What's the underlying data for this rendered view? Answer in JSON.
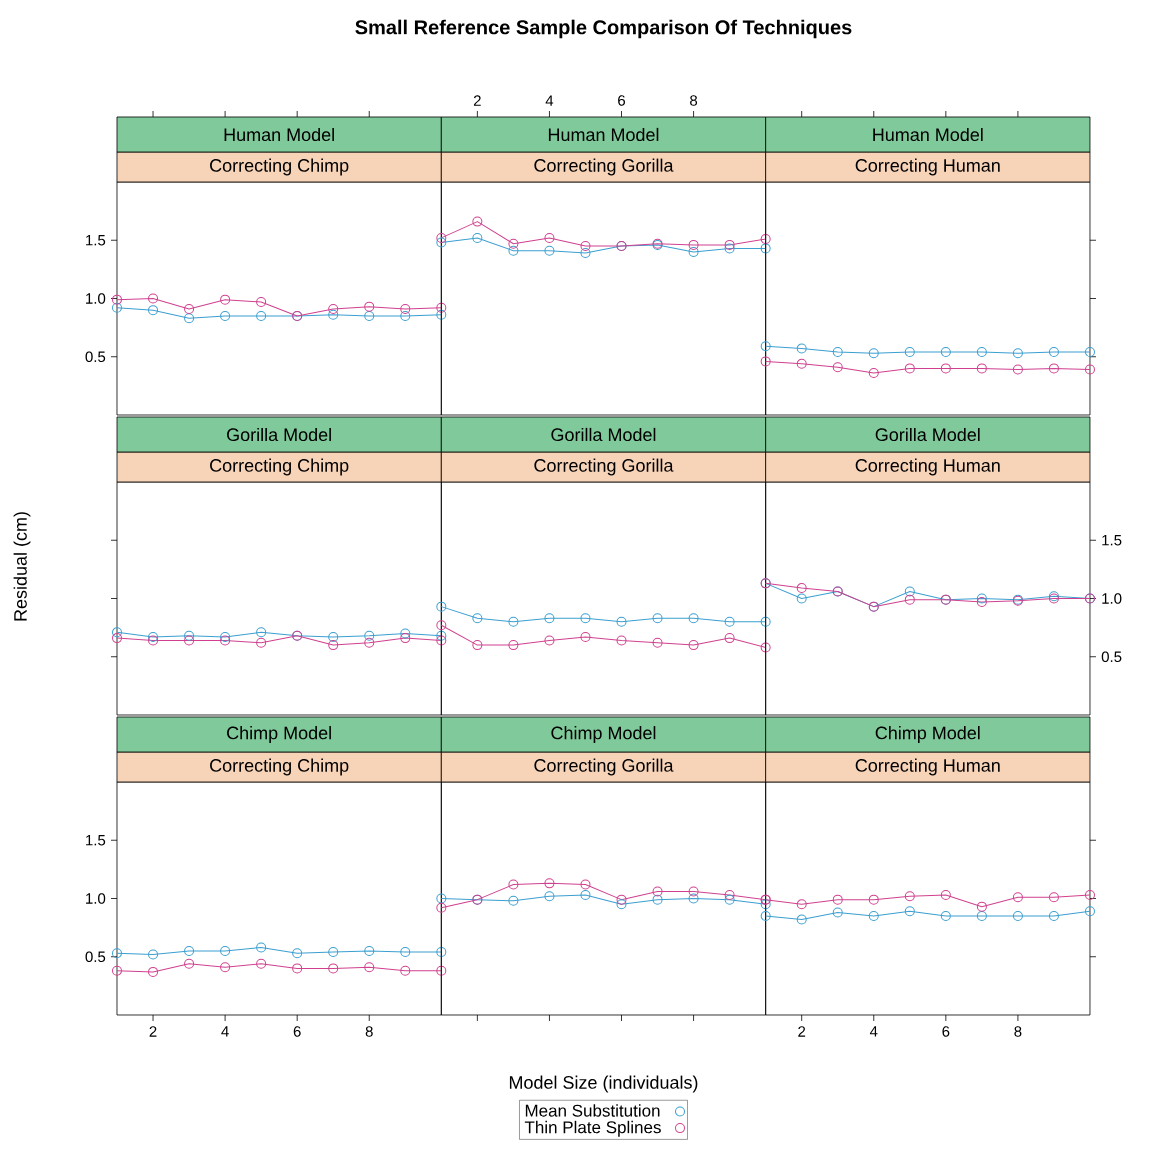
{
  "chart_data": [
    {
      "type": "other",
      "title": "Small Reference Sample Comparison Of Techniques",
      "xlabel": "Model Size (individuals)",
      "ylabel": "Residual (cm)"
    },
    {
      "type": "line",
      "title": "Human Model",
      "subtitle": "Correcting Chimp",
      "x": [
        1,
        2,
        3,
        4,
        5,
        6,
        7,
        8,
        9,
        10
      ],
      "xlim": [
        1,
        10
      ],
      "ylim": [
        0,
        2
      ],
      "xticks": [
        2,
        4,
        6,
        8
      ],
      "yticks": [
        {
          "value": 0.5,
          "label": "0.5"
        },
        {
          "value": 1.0,
          "label": "1.0"
        },
        {
          "value": 1.5,
          "label": "1.5"
        }
      ],
      "tick_labels": "y",
      "marker": "circle",
      "line_style": "solid",
      "series": [
        {
          "color": "#3b9fd0",
          "values": [
            0.92,
            0.9,
            0.83,
            0.85,
            0.85,
            0.85,
            0.86,
            0.85,
            0.85,
            0.86
          ]
        },
        {
          "color": "#d0408f",
          "values": [
            0.99,
            1.0,
            0.91,
            0.99,
            0.97,
            0.85,
            0.91,
            0.93,
            0.91,
            0.92
          ]
        }
      ]
    },
    {
      "type": "line",
      "title": "Human Model",
      "subtitle": "Correcting Gorilla",
      "x": [
        1,
        2,
        3,
        4,
        5,
        6,
        7,
        8,
        9,
        10
      ],
      "xlim": [
        1,
        10
      ],
      "ylim": [
        0,
        2
      ],
      "xticks": [
        2,
        4,
        6,
        8
      ],
      "tick_labels": "x",
      "marker": "circle",
      "line_style": "solid",
      "series": [
        {
          "color": "#3b9fd0",
          "values": [
            1.48,
            1.52,
            1.41,
            1.41,
            1.39,
            1.45,
            1.46,
            1.4,
            1.43,
            1.43
          ]
        },
        {
          "color": "#d0408f",
          "values": [
            1.52,
            1.66,
            1.47,
            1.52,
            1.45,
            1.45,
            1.47,
            1.46,
            1.46,
            1.51
          ]
        }
      ]
    },
    {
      "type": "line",
      "title": "Human Model",
      "subtitle": "Correcting Human",
      "x": [
        1,
        2,
        3,
        4,
        5,
        6,
        7,
        8,
        9,
        10
      ],
      "xlim": [
        1,
        10
      ],
      "ylim": [
        0,
        2
      ],
      "xticks": [
        2,
        4,
        6,
        8
      ],
      "yticks": [
        {
          "value": 0.5,
          "label": null
        },
        {
          "value": 1.0,
          "label": null
        },
        {
          "value": 1.5,
          "label": null
        }
      ],
      "tick_labels": false,
      "marker": "circle",
      "line_style": "solid",
      "series": [
        {
          "color": "#3b9fd0",
          "values": [
            0.59,
            0.57,
            0.54,
            0.53,
            0.54,
            0.54,
            0.54,
            0.53,
            0.54,
            0.54
          ]
        },
        {
          "color": "#d0408f",
          "values": [
            0.46,
            0.44,
            0.41,
            0.36,
            0.4,
            0.4,
            0.4,
            0.39,
            0.4,
            0.39
          ]
        }
      ]
    },
    {
      "type": "line",
      "title": "Gorilla Model",
      "subtitle": "Correcting Chimp",
      "x": [
        1,
        2,
        3,
        4,
        5,
        6,
        7,
        8,
        9,
        10
      ],
      "xlim": [
        1,
        10
      ],
      "ylim": [
        0,
        2
      ],
      "yticks": [
        {
          "value": 0.5,
          "label": null
        },
        {
          "value": 1.0,
          "label": null
        },
        {
          "value": 1.5,
          "label": null
        }
      ],
      "tick_labels": false,
      "marker": "circle",
      "line_style": "solid",
      "series": [
        {
          "color": "#3b9fd0",
          "values": [
            0.71,
            0.67,
            0.68,
            0.67,
            0.71,
            0.68,
            0.67,
            0.68,
            0.7,
            0.68
          ]
        },
        {
          "color": "#d0408f",
          "values": [
            0.66,
            0.64,
            0.64,
            0.64,
            0.62,
            0.68,
            0.6,
            0.62,
            0.66,
            0.64
          ]
        }
      ]
    },
    {
      "type": "line",
      "title": "Gorilla Model",
      "subtitle": "Correcting Gorilla",
      "x": [
        1,
        2,
        3,
        4,
        5,
        6,
        7,
        8,
        9,
        10
      ],
      "xlim": [
        1,
        10
      ],
      "ylim": [
        0,
        2
      ],
      "tick_labels": false,
      "marker": "circle",
      "line_style": "solid",
      "series": [
        {
          "color": "#3b9fd0",
          "values": [
            0.93,
            0.83,
            0.8,
            0.83,
            0.83,
            0.8,
            0.83,
            0.83,
            0.8,
            0.8
          ]
        },
        {
          "color": "#d0408f",
          "values": [
            0.77,
            0.6,
            0.6,
            0.64,
            0.67,
            0.64,
            0.62,
            0.6,
            0.66,
            0.58
          ]
        }
      ]
    },
    {
      "type": "line",
      "title": "Gorilla Model",
      "subtitle": "Correcting Human",
      "x": [
        1,
        2,
        3,
        4,
        5,
        6,
        7,
        8,
        9,
        10
      ],
      "xlim": [
        1,
        10
      ],
      "ylim": [
        0,
        2
      ],
      "yticks": [
        {
          "value": 0.5,
          "label": "0.5"
        },
        {
          "value": 1.0,
          "label": "1.0"
        },
        {
          "value": 1.5,
          "label": "1.5"
        }
      ],
      "tick_labels": "y",
      "marker": "circle",
      "line_style": "solid",
      "series": [
        {
          "color": "#3b9fd0",
          "values": [
            1.13,
            1.0,
            1.06,
            0.93,
            1.06,
            0.99,
            1.0,
            0.99,
            1.02,
            1.0
          ]
        },
        {
          "color": "#d0408f",
          "values": [
            1.13,
            1.09,
            1.06,
            0.93,
            0.99,
            0.99,
            0.97,
            0.98,
            1.0,
            1.0
          ]
        }
      ]
    },
    {
      "type": "line",
      "title": "Chimp Model",
      "subtitle": "Correcting Chimp",
      "x": [
        1,
        2,
        3,
        4,
        5,
        6,
        7,
        8,
        9,
        10
      ],
      "xlim": [
        1,
        10
      ],
      "ylim": [
        0,
        2
      ],
      "xticks": [
        2,
        4,
        6,
        8
      ],
      "yticks": [
        {
          "value": 0.5,
          "label": "0.5"
        },
        {
          "value": 1.0,
          "label": "1.0"
        },
        {
          "value": 1.5,
          "label": "1.5"
        }
      ],
      "marker": "circle",
      "line_style": "solid",
      "series": [
        {
          "color": "#3b9fd0",
          "values": [
            0.53,
            0.52,
            0.55,
            0.55,
            0.58,
            0.53,
            0.54,
            0.55,
            0.54,
            0.54
          ]
        },
        {
          "color": "#d0408f",
          "values": [
            0.38,
            0.37,
            0.44,
            0.41,
            0.44,
            0.4,
            0.4,
            0.41,
            0.38,
            0.38
          ]
        }
      ]
    },
    {
      "type": "line",
      "title": "Chimp Model",
      "subtitle": "Correcting Gorilla",
      "x": [
        1,
        2,
        3,
        4,
        5,
        6,
        7,
        8,
        9,
        10
      ],
      "xlim": [
        1,
        10
      ],
      "ylim": [
        0,
        2
      ],
      "xticks": [
        2,
        4,
        6,
        8
      ],
      "tick_labels": false,
      "marker": "circle",
      "line_style": "solid",
      "legend": "bottom",
      "series": [
        {
          "name": "Mean Substitution",
          "color": "#3b9fd0",
          "values": [
            1.0,
            0.99,
            0.98,
            1.02,
            1.03,
            0.95,
            0.99,
            1.0,
            0.99,
            0.95
          ]
        },
        {
          "name": "Thin Plate Splines",
          "color": "#d0408f",
          "values": [
            0.92,
            0.99,
            1.12,
            1.13,
            1.12,
            0.99,
            1.06,
            1.06,
            1.03,
            0.99
          ]
        }
      ]
    },
    {
      "type": "line",
      "title": "Chimp Model",
      "subtitle": "Correcting Human",
      "x": [
        1,
        2,
        3,
        4,
        5,
        6,
        7,
        8,
        9,
        10
      ],
      "xlim": [
        1,
        10
      ],
      "ylim": [
        0,
        2
      ],
      "xticks": [
        2,
        4,
        6,
        8
      ],
      "yticks": [
        {
          "value": 0.5,
          "label": null
        },
        {
          "value": 1.0,
          "label": null
        },
        {
          "value": 1.5,
          "label": null
        }
      ],
      "tick_labels": "x",
      "marker": "circle",
      "line_style": "solid",
      "series": [
        {
          "color": "#3b9fd0",
          "values": [
            0.85,
            0.82,
            0.88,
            0.85,
            0.89,
            0.85,
            0.85,
            0.85,
            0.85,
            0.89
          ]
        },
        {
          "color": "#d0408f",
          "values": [
            0.99,
            0.95,
            0.99,
            0.99,
            1.02,
            1.03,
            0.93,
            1.01,
            1.01,
            1.03
          ]
        }
      ]
    }
  ]
}
